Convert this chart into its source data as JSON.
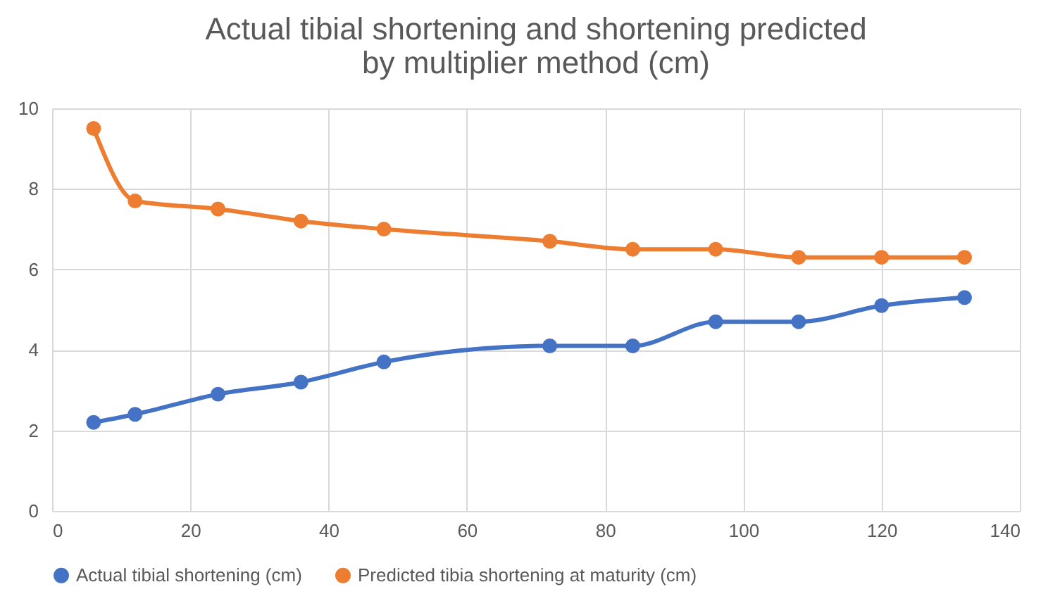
{
  "chart_data": {
    "type": "line",
    "title": "Actual tibial shortening and shortening predicted\nby multiplier method (cm)",
    "x": [
      6,
      12,
      24,
      36,
      48,
      72,
      84,
      96,
      108,
      120,
      132
    ],
    "series": [
      {
        "name": "Actual tibial shortening (cm)",
        "color": "#4472c4",
        "values": [
          2.2,
          2.4,
          2.9,
          3.2,
          3.7,
          4.1,
          4.1,
          4.7,
          4.7,
          5.1,
          5.3
        ]
      },
      {
        "name": "Predicted tibia shortening at maturity  (cm)",
        "color": "#ed7d31",
        "values": [
          9.5,
          7.7,
          7.5,
          7.2,
          7.0,
          6.7,
          6.5,
          6.5,
          6.3,
          6.3,
          6.3
        ]
      }
    ],
    "xlim": [
      0,
      140
    ],
    "xticks": [
      0,
      20,
      40,
      60,
      80,
      100,
      120,
      140
    ],
    "ylim": [
      0,
      10
    ],
    "yticks": [
      0,
      2,
      4,
      6,
      8,
      10
    ],
    "grid": true,
    "legend": "bottom",
    "marker": "circle",
    "line_style": "solid"
  }
}
